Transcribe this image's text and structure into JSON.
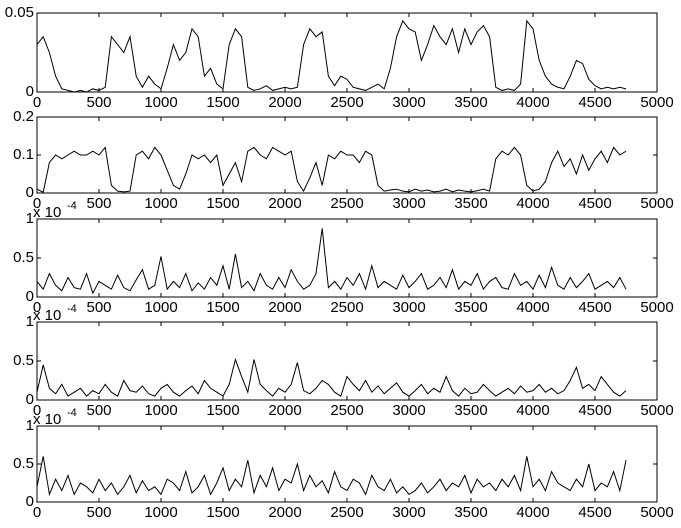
{
  "chart_data": [
    {
      "type": "line",
      "color": "#000000",
      "xlim": [
        0,
        5000
      ],
      "ylim": [
        0,
        0.05
      ],
      "xticks": [
        0,
        500,
        1000,
        1500,
        2000,
        2500,
        3000,
        3500,
        4000,
        4500,
        5000
      ],
      "yticks": [
        0,
        0.05
      ],
      "x": [
        0,
        50,
        100,
        150,
        200,
        250,
        300,
        350,
        400,
        450,
        500,
        550,
        600,
        650,
        700,
        750,
        800,
        850,
        900,
        950,
        1000,
        1050,
        1100,
        1150,
        1200,
        1250,
        1300,
        1350,
        1400,
        1450,
        1500,
        1550,
        1600,
        1650,
        1700,
        1750,
        1800,
        1850,
        1900,
        1950,
        2000,
        2050,
        2100,
        2150,
        2200,
        2250,
        2300,
        2350,
        2400,
        2450,
        2500,
        2550,
        2600,
        2650,
        2700,
        2750,
        2800,
        2850,
        2900,
        2950,
        3000,
        3050,
        3100,
        3150,
        3200,
        3250,
        3300,
        3350,
        3400,
        3450,
        3500,
        3550,
        3600,
        3650,
        3700,
        3750,
        3800,
        3850,
        3900,
        3950,
        4000,
        4050,
        4100,
        4150,
        4200,
        4250,
        4300,
        4350,
        4400,
        4450,
        4500,
        4550,
        4600,
        4650,
        4700,
        4750
      ],
      "values": [
        0.03,
        0.035,
        0.025,
        0.01,
        0.002,
        0.001,
        0,
        0.001,
        0,
        0.002,
        0.001,
        0.003,
        0.035,
        0.03,
        0.025,
        0.035,
        0.01,
        0.003,
        0.01,
        0.005,
        0.002,
        0.015,
        0.03,
        0.02,
        0.025,
        0.04,
        0.035,
        0.01,
        0.015,
        0.005,
        0.002,
        0.03,
        0.04,
        0.035,
        0.003,
        0.001,
        0.002,
        0.004,
        0.001,
        0.002,
        0.003,
        0.002,
        0.003,
        0.03,
        0.04,
        0.035,
        0.038,
        0.01,
        0.004,
        0.01,
        0.008,
        0.003,
        0.002,
        0.001,
        0.003,
        0.005,
        0.002,
        0.015,
        0.035,
        0.045,
        0.04,
        0.038,
        0.02,
        0.03,
        0.042,
        0.035,
        0.03,
        0.04,
        0.025,
        0.04,
        0.03,
        0.038,
        0.042,
        0.035,
        0.003,
        0.001,
        0.002,
        0.001,
        0.005,
        0.045,
        0.04,
        0.02,
        0.01,
        0.005,
        0.003,
        0.002,
        0.01,
        0.02,
        0.018,
        0.008,
        0.004,
        0.002,
        0.003,
        0.002,
        0.003,
        0.002
      ]
    },
    {
      "type": "line",
      "color": "#000000",
      "xlim": [
        0,
        5000
      ],
      "ylim": [
        0,
        0.2
      ],
      "xticks": [
        0,
        500,
        1000,
        1500,
        2000,
        2500,
        3000,
        3500,
        4000,
        4500,
        5000
      ],
      "yticks": [
        0,
        0.1,
        0.2
      ],
      "x": [
        0,
        50,
        100,
        150,
        200,
        250,
        300,
        350,
        400,
        450,
        500,
        550,
        600,
        650,
        700,
        750,
        800,
        850,
        900,
        950,
        1000,
        1050,
        1100,
        1150,
        1200,
        1250,
        1300,
        1350,
        1400,
        1450,
        1500,
        1550,
        1600,
        1650,
        1700,
        1750,
        1800,
        1850,
        1900,
        1950,
        2000,
        2050,
        2100,
        2150,
        2200,
        2250,
        2300,
        2350,
        2400,
        2450,
        2500,
        2550,
        2600,
        2650,
        2700,
        2750,
        2800,
        2850,
        2900,
        2950,
        3000,
        3050,
        3100,
        3150,
        3200,
        3250,
        3300,
        3350,
        3400,
        3450,
        3500,
        3550,
        3600,
        3650,
        3700,
        3750,
        3800,
        3850,
        3900,
        3950,
        4000,
        4050,
        4100,
        4150,
        4200,
        4250,
        4300,
        4350,
        4400,
        4450,
        4500,
        4550,
        4600,
        4650,
        4700,
        4750
      ],
      "values": [
        0.01,
        0.002,
        0.08,
        0.1,
        0.09,
        0.1,
        0.11,
        0.1,
        0.1,
        0.11,
        0.1,
        0.12,
        0.02,
        0.005,
        0.003,
        0.005,
        0.1,
        0.11,
        0.09,
        0.12,
        0.1,
        0.06,
        0.02,
        0.01,
        0.05,
        0.1,
        0.09,
        0.1,
        0.08,
        0.1,
        0.02,
        0.05,
        0.08,
        0.03,
        0.11,
        0.12,
        0.1,
        0.09,
        0.12,
        0.11,
        0.1,
        0.11,
        0.03,
        0.005,
        0.04,
        0.08,
        0.02,
        0.1,
        0.09,
        0.11,
        0.1,
        0.1,
        0.08,
        0.11,
        0.1,
        0.02,
        0.005,
        0.008,
        0.01,
        0.005,
        0.003,
        0.01,
        0.005,
        0.008,
        0.003,
        0.005,
        0.01,
        0.003,
        0.008,
        0.005,
        0.003,
        0.006,
        0.01,
        0.005,
        0.09,
        0.11,
        0.1,
        0.12,
        0.1,
        0.02,
        0.005,
        0.01,
        0.03,
        0.08,
        0.11,
        0.07,
        0.09,
        0.05,
        0.1,
        0.06,
        0.09,
        0.11,
        0.08,
        0.12,
        0.1,
        0.11
      ]
    },
    {
      "type": "line",
      "color": "#000000",
      "xlim": [
        0,
        5000
      ],
      "ylim": [
        0,
        1
      ],
      "xticks": [
        0,
        500,
        1000,
        1500,
        2000,
        2500,
        3000,
        3500,
        4000,
        4500,
        5000
      ],
      "yticks": [
        0,
        0.5,
        1
      ],
      "y_multiplier": {
        "base": "x 10",
        "exponent": "-4"
      },
      "x": [
        0,
        50,
        100,
        150,
        200,
        250,
        300,
        350,
        400,
        450,
        500,
        550,
        600,
        650,
        700,
        750,
        800,
        850,
        900,
        950,
        1000,
        1050,
        1100,
        1150,
        1200,
        1250,
        1300,
        1350,
        1400,
        1450,
        1500,
        1550,
        1600,
        1650,
        1700,
        1750,
        1800,
        1850,
        1900,
        1950,
        2000,
        2050,
        2100,
        2150,
        2200,
        2250,
        2300,
        2350,
        2400,
        2450,
        2500,
        2550,
        2600,
        2650,
        2700,
        2750,
        2800,
        2850,
        2900,
        2950,
        3000,
        3050,
        3100,
        3150,
        3200,
        3250,
        3300,
        3350,
        3400,
        3450,
        3500,
        3550,
        3600,
        3650,
        3700,
        3750,
        3800,
        3850,
        3900,
        3950,
        4000,
        4050,
        4100,
        4150,
        4200,
        4250,
        4300,
        4350,
        4400,
        4450,
        4500,
        4550,
        4600,
        4650,
        4700,
        4750
      ],
      "values": [
        0.2,
        0.1,
        0.3,
        0.15,
        0.08,
        0.25,
        0.12,
        0.1,
        0.3,
        0.05,
        0.2,
        0.15,
        0.1,
        0.28,
        0.12,
        0.08,
        0.22,
        0.35,
        0.1,
        0.15,
        0.52,
        0.1,
        0.2,
        0.12,
        0.3,
        0.08,
        0.18,
        0.1,
        0.25,
        0.15,
        0.4,
        0.1,
        0.55,
        0.12,
        0.2,
        0.08,
        0.3,
        0.15,
        0.1,
        0.25,
        0.12,
        0.35,
        0.2,
        0.1,
        0.15,
        0.3,
        0.88,
        0.12,
        0.2,
        0.1,
        0.25,
        0.15,
        0.3,
        0.1,
        0.4,
        0.12,
        0.2,
        0.15,
        0.1,
        0.28,
        0.12,
        0.2,
        0.3,
        0.1,
        0.15,
        0.25,
        0.12,
        0.35,
        0.1,
        0.2,
        0.15,
        0.3,
        0.1,
        0.2,
        0.25,
        0.12,
        0.1,
        0.3,
        0.15,
        0.2,
        0.1,
        0.28,
        0.12,
        0.38,
        0.15,
        0.1,
        0.25,
        0.12,
        0.2,
        0.3,
        0.1,
        0.15,
        0.2,
        0.12,
        0.25,
        0.1
      ]
    },
    {
      "type": "line",
      "color": "#000000",
      "xlim": [
        0,
        5000
      ],
      "ylim": [
        0,
        1
      ],
      "xticks": [
        0,
        500,
        1000,
        1500,
        2000,
        2500,
        3000,
        3500,
        4000,
        4500,
        5000
      ],
      "yticks": [
        0,
        0.5,
        1
      ],
      "y_multiplier": {
        "base": "x 10",
        "exponent": "-4"
      },
      "x": [
        0,
        50,
        100,
        150,
        200,
        250,
        300,
        350,
        400,
        450,
        500,
        550,
        600,
        650,
        700,
        750,
        800,
        850,
        900,
        950,
        1000,
        1050,
        1100,
        1150,
        1200,
        1250,
        1300,
        1350,
        1400,
        1450,
        1500,
        1550,
        1600,
        1650,
        1700,
        1750,
        1800,
        1850,
        1900,
        1950,
        2000,
        2050,
        2100,
        2150,
        2200,
        2250,
        2300,
        2350,
        2400,
        2450,
        2500,
        2550,
        2600,
        2650,
        2700,
        2750,
        2800,
        2850,
        2900,
        2950,
        3000,
        3050,
        3100,
        3150,
        3200,
        3250,
        3300,
        3350,
        3400,
        3450,
        3500,
        3550,
        3600,
        3650,
        3700,
        3750,
        3800,
        3850,
        3900,
        3950,
        4000,
        4050,
        4100,
        4150,
        4200,
        4250,
        4300,
        4350,
        4400,
        4450,
        4500,
        4550,
        4600,
        4650,
        4700,
        4750
      ],
      "values": [
        0.1,
        0.45,
        0.15,
        0.08,
        0.2,
        0.05,
        0.1,
        0.15,
        0.05,
        0.12,
        0.08,
        0.2,
        0.1,
        0.05,
        0.25,
        0.12,
        0.1,
        0.18,
        0.08,
        0.05,
        0.15,
        0.2,
        0.1,
        0.05,
        0.12,
        0.18,
        0.08,
        0.25,
        0.15,
        0.1,
        0.05,
        0.2,
        0.52,
        0.3,
        0.1,
        0.52,
        0.2,
        0.12,
        0.05,
        0.15,
        0.1,
        0.2,
        0.48,
        0.12,
        0.08,
        0.15,
        0.25,
        0.2,
        0.1,
        0.05,
        0.3,
        0.2,
        0.12,
        0.25,
        0.1,
        0.18,
        0.08,
        0.15,
        0.22,
        0.1,
        0.05,
        0.12,
        0.2,
        0.08,
        0.15,
        0.1,
        0.3,
        0.12,
        0.05,
        0.15,
        0.08,
        0.1,
        0.2,
        0.12,
        0.05,
        0.1,
        0.15,
        0.08,
        0.18,
        0.1,
        0.12,
        0.2,
        0.1,
        0.15,
        0.08,
        0.12,
        0.25,
        0.42,
        0.15,
        0.2,
        0.12,
        0.3,
        0.2,
        0.1,
        0.05,
        0.12
      ]
    },
    {
      "type": "line",
      "color": "#000000",
      "xlim": [
        0,
        5000
      ],
      "ylim": [
        0,
        1
      ],
      "xticks": [
        0,
        500,
        1000,
        1500,
        2000,
        2500,
        3000,
        3500,
        4000,
        4500,
        5000
      ],
      "yticks": [
        0,
        0.5,
        1
      ],
      "y_multiplier": {
        "base": "x 10",
        "exponent": "-4"
      },
      "x": [
        0,
        50,
        100,
        150,
        200,
        250,
        300,
        350,
        400,
        450,
        500,
        550,
        600,
        650,
        700,
        750,
        800,
        850,
        900,
        950,
        1000,
        1050,
        1100,
        1150,
        1200,
        1250,
        1300,
        1350,
        1400,
        1450,
        1500,
        1550,
        1600,
        1650,
        1700,
        1750,
        1800,
        1850,
        1900,
        1950,
        2000,
        2050,
        2100,
        2150,
        2200,
        2250,
        2300,
        2350,
        2400,
        2450,
        2500,
        2550,
        2600,
        2650,
        2700,
        2750,
        2800,
        2850,
        2900,
        2950,
        3000,
        3050,
        3100,
        3150,
        3200,
        3250,
        3300,
        3350,
        3400,
        3450,
        3500,
        3550,
        3600,
        3650,
        3700,
        3750,
        3800,
        3850,
        3900,
        3950,
        4000,
        4050,
        4100,
        4150,
        4200,
        4250,
        4300,
        4350,
        4400,
        4450,
        4500,
        4550,
        4600,
        4650,
        4700,
        4750
      ],
      "values": [
        0.2,
        0.6,
        0.1,
        0.3,
        0.15,
        0.35,
        0.1,
        0.25,
        0.2,
        0.12,
        0.3,
        0.15,
        0.25,
        0.1,
        0.2,
        0.35,
        0.12,
        0.28,
        0.15,
        0.2,
        0.1,
        0.3,
        0.25,
        0.15,
        0.4,
        0.12,
        0.2,
        0.35,
        0.1,
        0.25,
        0.45,
        0.15,
        0.3,
        0.2,
        0.55,
        0.12,
        0.35,
        0.2,
        0.45,
        0.15,
        0.3,
        0.25,
        0.5,
        0.15,
        0.35,
        0.2,
        0.28,
        0.12,
        0.4,
        0.2,
        0.15,
        0.3,
        0.25,
        0.1,
        0.35,
        0.2,
        0.15,
        0.3,
        0.12,
        0.2,
        0.1,
        0.15,
        0.25,
        0.12,
        0.2,
        0.3,
        0.15,
        0.25,
        0.2,
        0.35,
        0.12,
        0.3,
        0.2,
        0.25,
        0.15,
        0.3,
        0.2,
        0.35,
        0.15,
        0.6,
        0.2,
        0.3,
        0.15,
        0.4,
        0.25,
        0.2,
        0.15,
        0.3,
        0.2,
        0.5,
        0.15,
        0.25,
        0.2,
        0.4,
        0.15,
        0.55
      ]
    }
  ]
}
